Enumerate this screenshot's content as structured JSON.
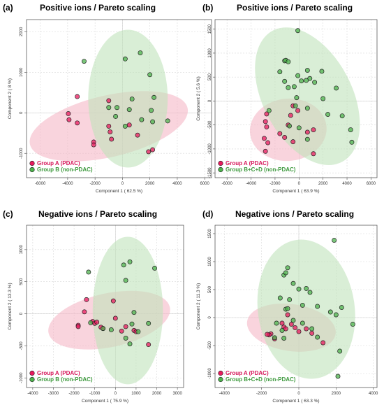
{
  "colors": {
    "groupA_fill": "#e8195d",
    "groupB_fill": "#4cb24c",
    "groupA_ellipse": "#f5b8c6",
    "groupB_ellipse": "#bfe3bb",
    "point_stroke": "#222222",
    "groupA_text": "#d6185a",
    "groupB_text": "#3f9a3f"
  },
  "chart_data": [
    {
      "type": "scatter",
      "letter": "(a)",
      "title": "Positive ions / Pareto scaling",
      "xlabel": "Component 1 ( 62.5 %)",
      "ylabel": "Component 2 ( 8 %)",
      "xlim": [
        -7000,
        6500
      ],
      "ylim": [
        -1600,
        2300
      ],
      "xticks": [
        -6000,
        -4000,
        -2000,
        0,
        2000,
        4000,
        6000
      ],
      "yticks": [
        -1000,
        0,
        1000,
        2000
      ],
      "legend_position": "bottom-left",
      "series": [
        {
          "name": "Group A (PDAC)",
          "color_key": "groupA",
          "points": [
            [
              -3300,
              400
            ],
            [
              -3950,
              -20
            ],
            [
              -3900,
              -170
            ],
            [
              -3300,
              -250
            ],
            [
              -2100,
              -720
            ],
            [
              -2100,
              -790
            ],
            [
              -1000,
              300
            ],
            [
              -1000,
              -330
            ],
            [
              -900,
              -470
            ],
            [
              -800,
              -650
            ],
            [
              500,
              -300
            ],
            [
              1100,
              -550
            ],
            [
              1900,
              -960
            ],
            [
              2200,
              -910
            ]
          ],
          "ellipse": {
            "cx": -1000,
            "cy": -330,
            "rx": 5900,
            "ry": 760,
            "angle_deg": -13
          }
        },
        {
          "name": "Group B (non-PDAC)",
          "color_key": "groupB",
          "points": [
            [
              -2800,
              1270
            ],
            [
              200,
              1330
            ],
            [
              1300,
              1480
            ],
            [
              2000,
              940
            ],
            [
              -1000,
              130
            ],
            [
              -400,
              130
            ],
            [
              700,
              340
            ],
            [
              500,
              80
            ],
            [
              -500,
              -90
            ],
            [
              1400,
              -170
            ],
            [
              2300,
              380
            ],
            [
              2100,
              60
            ],
            [
              2200,
              -220
            ],
            [
              3300,
              -200
            ],
            [
              200,
              -330
            ]
          ],
          "ellipse": {
            "cx": 400,
            "cy": 350,
            "rx": 2900,
            "ry": 1700,
            "angle_deg": 0
          }
        }
      ]
    },
    {
      "type": "scatter",
      "letter": "(b)",
      "title": "Positive ions / Pareto scaling",
      "xlabel": "Component 1 ( 63.9 %)",
      "ylabel": "Component 2 ( 5.6 %)",
      "xlim": [
        -7000,
        6500
      ],
      "ylim": [
        -1600,
        1700
      ],
      "xticks": [
        -6000,
        -4000,
        -2000,
        0,
        2000,
        4000,
        6000
      ],
      "yticks": [
        -1500,
        -1000,
        -500,
        0,
        500,
        1000,
        1500
      ],
      "legend_position": "bottom-left",
      "series": [
        {
          "name": "Group A (PDAC)",
          "color_key": "groupA",
          "points": [
            [
              -2700,
              -270
            ],
            [
              -2800,
              -430
            ],
            [
              -2700,
              -540
            ],
            [
              -2900,
              -780
            ],
            [
              -2600,
              -870
            ],
            [
              -2800,
              -1050
            ],
            [
              -1600,
              -680
            ],
            [
              -1200,
              -760
            ],
            [
              -500,
              -100
            ],
            [
              -700,
              -300
            ],
            [
              -900,
              -500
            ],
            [
              -500,
              -850
            ],
            [
              -100,
              -200
            ],
            [
              700,
              -650
            ],
            [
              1200,
              -600
            ],
            [
              1200,
              -1100
            ]
          ],
          "ellipse": {
            "cx": -900,
            "cy": -600,
            "rx": 3200,
            "ry": 650,
            "angle_deg": -5
          }
        },
        {
          "name": "Group B+C+D (non-PDAC)",
          "color_key": "groupB",
          "points": [
            [
              -100,
              1470
            ],
            [
              -1200,
              840
            ],
            [
              -1100,
              850
            ],
            [
              -900,
              820
            ],
            [
              -1600,
              610
            ],
            [
              700,
              640
            ],
            [
              1900,
              620
            ],
            [
              -100,
              530
            ],
            [
              -1200,
              410
            ],
            [
              900,
              470
            ],
            [
              600,
              430
            ],
            [
              200,
              420
            ],
            [
              1300,
              390
            ],
            [
              -900,
              280
            ],
            [
              -400,
              300
            ],
            [
              3100,
              270
            ],
            [
              2000,
              50
            ],
            [
              -200,
              70
            ],
            [
              -300,
              -100
            ],
            [
              700,
              -150
            ],
            [
              2400,
              -280
            ],
            [
              3600,
              -310
            ],
            [
              -800,
              -520
            ],
            [
              4300,
              -600
            ],
            [
              4400,
              -860
            ],
            [
              -2500,
              -200
            ],
            [
              0,
              -560
            ],
            [
              700,
              -800
            ]
          ],
          "ellipse": {
            "cx": 700,
            "cy": 100,
            "rx": 3700,
            "ry": 1550,
            "angle_deg": -28
          }
        }
      ]
    },
    {
      "type": "scatter",
      "letter": "(c)",
      "title": "Negative ions / Pareto scaling",
      "xlabel": "Component 1 ( 75.9 %)",
      "ylabel": "Component 2 ( 13.3 %)",
      "xlim": [
        -4300,
        3300
      ],
      "ylim": [
        -1150,
        1380
      ],
      "xticks": [
        -4000,
        -3000,
        -2000,
        -1000,
        0,
        1000,
        2000,
        3000
      ],
      "yticks": [
        -1000,
        -500,
        0,
        500,
        1000
      ],
      "legend_position": "bottom-left",
      "series": [
        {
          "name": "Group A (PDAC)",
          "color_key": "groupA",
          "points": [
            [
              -1400,
              220
            ],
            [
              -1500,
              30
            ],
            [
              -1800,
              -180
            ],
            [
              -1800,
              -200
            ],
            [
              -1100,
              -120
            ],
            [
              -1000,
              -150
            ],
            [
              -900,
              -130
            ],
            [
              -700,
              -210
            ],
            [
              -600,
              -230
            ],
            [
              -100,
              200
            ],
            [
              0,
              -70
            ],
            [
              300,
              -270
            ],
            [
              500,
              -200
            ],
            [
              900,
              -260
            ],
            [
              1000,
              -280
            ],
            [
              1600,
              -480
            ]
          ],
          "ellipse": {
            "cx": -300,
            "cy": -100,
            "rx": 3000,
            "ry": 420,
            "angle_deg": -12
          }
        },
        {
          "name": "Group B (non-PDAC)",
          "color_key": "groupB",
          "points": [
            [
              -1300,
              650
            ],
            [
              400,
              760
            ],
            [
              700,
              810
            ],
            [
              1900,
              710
            ],
            [
              500,
              520
            ],
            [
              -1200,
              -140
            ],
            [
              -600,
              -230
            ],
            [
              -200,
              -250
            ],
            [
              800,
              -160
            ],
            [
              900,
              20
            ],
            [
              1100,
              -280
            ],
            [
              1600,
              -150
            ],
            [
              500,
              -380
            ],
            [
              700,
              -470
            ]
          ],
          "ellipse": {
            "cx": 600,
            "cy": 50,
            "rx": 1700,
            "ry": 1150,
            "angle_deg": 0
          }
        }
      ]
    },
    {
      "type": "scatter",
      "letter": "(d)",
      "title": "Negative ions / Pareto scaling",
      "xlabel": "Component 1 ( 63.3 %)",
      "ylabel": "Component 2 ( 11.3 %)",
      "xlim": [
        -4500,
        4200
      ],
      "ylim": [
        -1250,
        1650
      ],
      "xticks": [
        -4000,
        -2000,
        0,
        2000,
        4000
      ],
      "yticks": [
        -1000,
        -500,
        0,
        500,
        1000,
        1500
      ],
      "legend_position": "bottom-left",
      "series": [
        {
          "name": "Group A (PDAC)",
          "color_key": "groupA",
          "points": [
            [
              -1500,
              -290
            ],
            [
              -1600,
              -310
            ],
            [
              -1700,
              -300
            ],
            [
              -1300,
              -380
            ],
            [
              -900,
              -100
            ],
            [
              -800,
              -170
            ],
            [
              -700,
              -200
            ],
            [
              -600,
              50
            ],
            [
              -400,
              -120
            ],
            [
              -200,
              -180
            ],
            [
              0,
              -250
            ],
            [
              400,
              -200
            ],
            [
              700,
              -280
            ],
            [
              1300,
              -450
            ]
          ],
          "ellipse": {
            "cx": -400,
            "cy": -180,
            "rx": 2400,
            "ry": 420,
            "angle_deg": 8
          }
        },
        {
          "name": "Group B+C+D (non-PDAC)",
          "color_key": "groupB",
          "points": [
            [
              1900,
              1380
            ],
            [
              -600,
              890
            ],
            [
              -800,
              760
            ],
            [
              -700,
              800
            ],
            [
              -300,
              610
            ],
            [
              0,
              510
            ],
            [
              400,
              520
            ],
            [
              600,
              450
            ],
            [
              -1000,
              350
            ],
            [
              -500,
              320
            ],
            [
              200,
              220
            ],
            [
              -700,
              150
            ],
            [
              -600,
              160
            ],
            [
              1000,
              200
            ],
            [
              1700,
              100
            ],
            [
              2300,
              180
            ],
            [
              2000,
              50
            ],
            [
              2900,
              -120
            ],
            [
              -300,
              -50
            ],
            [
              -1200,
              -100
            ],
            [
              -900,
              -230
            ],
            [
              200,
              -100
            ],
            [
              700,
              -200
            ],
            [
              1000,
              -350
            ],
            [
              -800,
              -370
            ],
            [
              -1300,
              -360
            ],
            [
              2200,
              -600
            ],
            [
              2100,
              -1050
            ]
          ],
          "ellipse": {
            "cx": 400,
            "cy": 150,
            "rx": 2600,
            "ry": 1250,
            "angle_deg": -8
          }
        }
      ]
    }
  ]
}
